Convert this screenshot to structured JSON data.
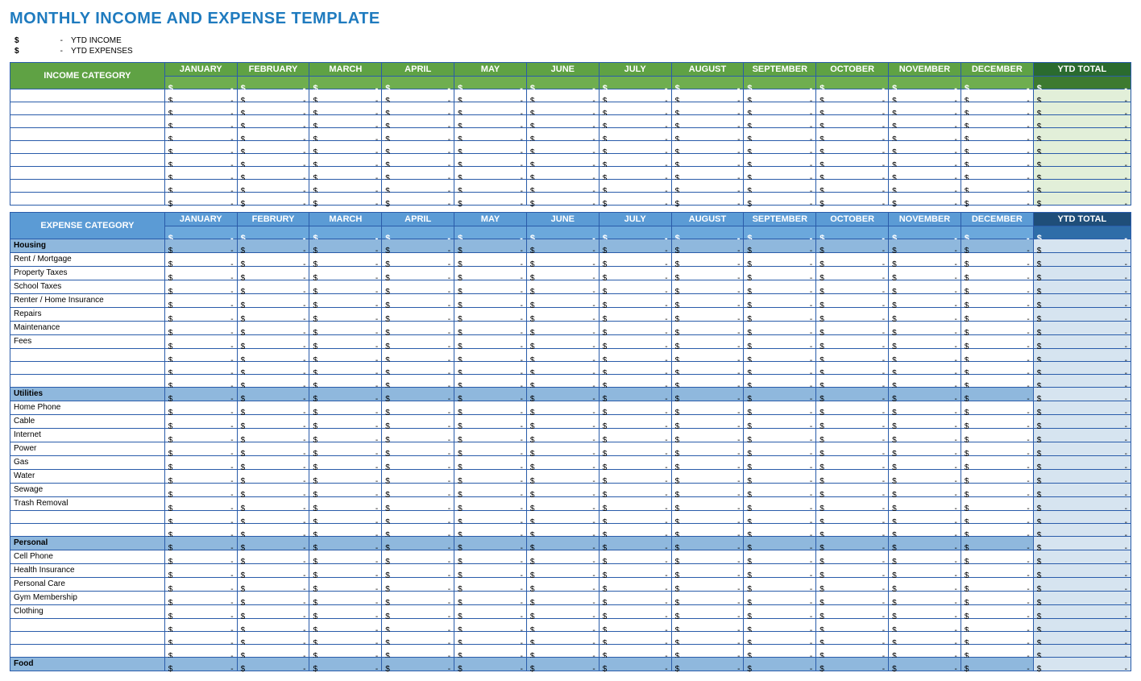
{
  "title": "MONTHLY INCOME AND EXPENSE TEMPLATE",
  "summary": {
    "ytd_income_label": "YTD INCOME",
    "ytd_expenses_label": "YTD EXPENSES",
    "dollar": "$",
    "dash": "-"
  },
  "months": [
    "JANUARY",
    "FEBRUARY",
    "MARCH",
    "APRIL",
    "MAY",
    "JUNE",
    "JULY",
    "AUGUST",
    "SEPTEMBER",
    "OCTOBER",
    "NOVEMBER",
    "DECEMBER"
  ],
  "months_expense": [
    "JANUARY",
    "FEBRURY",
    "MARCH",
    "APRIL",
    "MAY",
    "JUNE",
    "JULY",
    "AUGUST",
    "SEPTEMBER",
    "OCTOBER",
    "NOVEMBER",
    "DECEMBER"
  ],
  "ytd_label": "YTD TOTAL",
  "currency": "$",
  "empty_value": "-",
  "income": {
    "category_header": "INCOME CATEGORY",
    "rows": [
      "",
      "",
      "",
      "",
      "",
      "",
      "",
      "",
      ""
    ],
    "num_rows": 9
  },
  "expense": {
    "category_header": "EXPENSE CATEGORY",
    "sections": [
      {
        "heading": "Housing",
        "items": [
          "Rent / Mortgage",
          "Property Taxes",
          "School Taxes",
          "Renter / Home Insurance",
          "Repairs",
          "Maintenance",
          "Fees",
          "",
          "",
          ""
        ]
      },
      {
        "heading": "Utilities",
        "items": [
          "Home Phone",
          "Cable",
          "Internet",
          "Power",
          "Gas",
          "Water",
          "Sewage",
          "Trash Removal",
          "",
          ""
        ]
      },
      {
        "heading": "Personal",
        "items": [
          "Cell Phone",
          "Health Insurance",
          "Personal Care",
          "Gym Membership",
          "Clothing",
          "",
          "",
          ""
        ]
      },
      {
        "heading": "Food",
        "items": []
      }
    ]
  },
  "colors": {
    "title": "#1f7bbf",
    "border": "#2a5caa",
    "income_header": "#5fa244",
    "income_sub": "#6fae4f",
    "income_ytd_header": "#2a6b2f",
    "income_ytd_cell": "#e2efd9",
    "expense_header": "#5b9bd5",
    "expense_sub": "#6ba8dc",
    "expense_ytd_header": "#1f4e79",
    "expense_ytd_cell": "#d6e4f0",
    "expense_section_row": "#8fb8dd"
  }
}
